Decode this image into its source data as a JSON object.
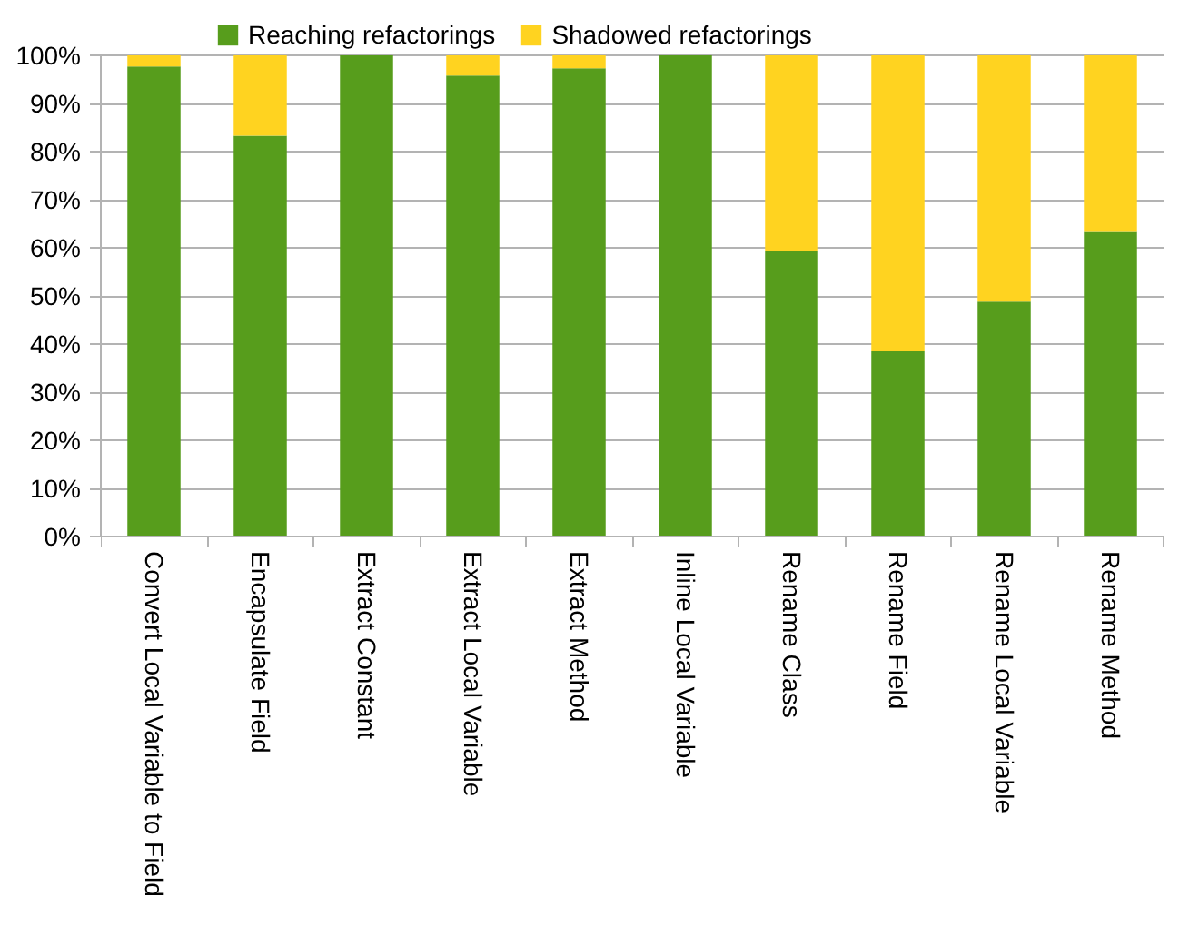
{
  "chart_data": {
    "type": "bar",
    "stacked": true,
    "categories": [
      "Convert Local Variable to Field",
      "Encapsulate Field",
      "Extract Constant",
      "Extract Local Variable",
      "Extract Method",
      "Inline Local Variable",
      "Rename Class",
      "Rename Field",
      "Rename Local Variable",
      "Rename Method"
    ],
    "series": [
      {
        "name": "Reaching refactorings",
        "color": "#579d1c",
        "values": [
          97.7,
          83.3,
          100,
          95.8,
          97.3,
          100,
          59.3,
          38.5,
          48.8,
          63.5
        ]
      },
      {
        "name": "Shadowed refactorings",
        "color": "#ffd320",
        "values": [
          2.3,
          16.7,
          0,
          4.2,
          2.7,
          0,
          40.7,
          61.5,
          51.2,
          36.5
        ]
      }
    ],
    "ylim": [
      0,
      100
    ],
    "yticks": [
      {
        "value": 0,
        "label": "0%"
      },
      {
        "value": 10,
        "label": "10%"
      },
      {
        "value": 20,
        "label": "20%"
      },
      {
        "value": 30,
        "label": "30%"
      },
      {
        "value": 40,
        "label": "40%"
      },
      {
        "value": 50,
        "label": "50%"
      },
      {
        "value": 60,
        "label": "60%"
      },
      {
        "value": 70,
        "label": "70%"
      },
      {
        "value": 80,
        "label": "80%"
      },
      {
        "value": 90,
        "label": "90%"
      },
      {
        "value": 100,
        "label": "100%"
      }
    ],
    "grid": "y",
    "legend": "top"
  }
}
